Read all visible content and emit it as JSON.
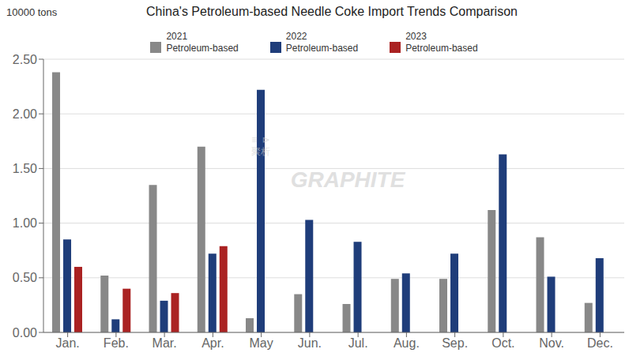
{
  "chart_data": {
    "type": "bar",
    "title": "China's Petroleum-based Needle Coke Import Trends Comparison",
    "y_label": "10000 tons",
    "categories": [
      "Jan.",
      "Feb.",
      "Mar.",
      "Apr.",
      "May",
      "Jun.",
      "Jul.",
      "Aug.",
      "Sep.",
      "Oct.",
      "Nov.",
      "Dec."
    ],
    "series": [
      {
        "name": "2021\nPetroleum-based",
        "color": "#888888",
        "values": [
          2.38,
          0.52,
          1.35,
          1.7,
          0.13,
          0.35,
          0.26,
          0.49,
          0.49,
          1.12,
          0.87,
          0.27
        ]
      },
      {
        "name": "2022\nPetroleum-based",
        "color": "#1f3d7a",
        "values": [
          0.85,
          0.12,
          0.29,
          0.72,
          2.22,
          1.03,
          0.83,
          0.54,
          0.72,
          1.63,
          0.51,
          0.68
        ]
      },
      {
        "name": "2023\nPetroleum-based",
        "color": "#aa2222",
        "values": [
          0.6,
          0.4,
          0.36,
          0.79,
          null,
          null,
          null,
          null,
          null,
          null,
          null,
          null
        ]
      }
    ],
    "ylim": [
      0,
      2.5
    ],
    "yticks": [
      {
        "value": 0,
        "label": "0.00"
      },
      {
        "value": 0.5,
        "label": "0.50"
      },
      {
        "value": 1,
        "label": "1.00"
      },
      {
        "value": 1.5,
        "label": "1.50"
      },
      {
        "value": 2,
        "label": "2.00"
      },
      {
        "value": 2.5,
        "label": "2.50"
      }
    ],
    "grid": true,
    "annotations": [
      "GRAPHITE",
      "≡  ⊳\n聚析"
    ]
  }
}
